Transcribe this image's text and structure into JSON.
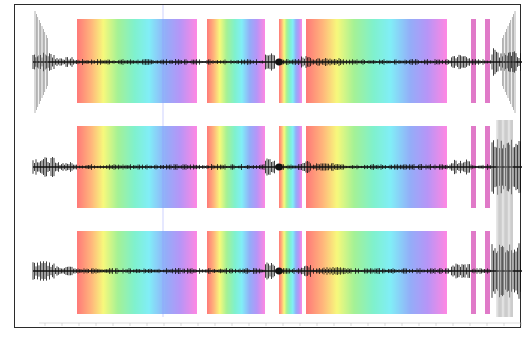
{
  "viewer": {
    "channels": [
      {
        "label": ""
      },
      {
        "label": ""
      },
      {
        "label": ""
      }
    ],
    "x_axis": {
      "title": "",
      "tick_labels": [
        "",
        "",
        "",
        "",
        ""
      ]
    }
  },
  "colors": {
    "frame": "#2b2b2b",
    "trace": "#111111",
    "marker": "#e07ac8",
    "cursor": "#8c96ff"
  }
}
